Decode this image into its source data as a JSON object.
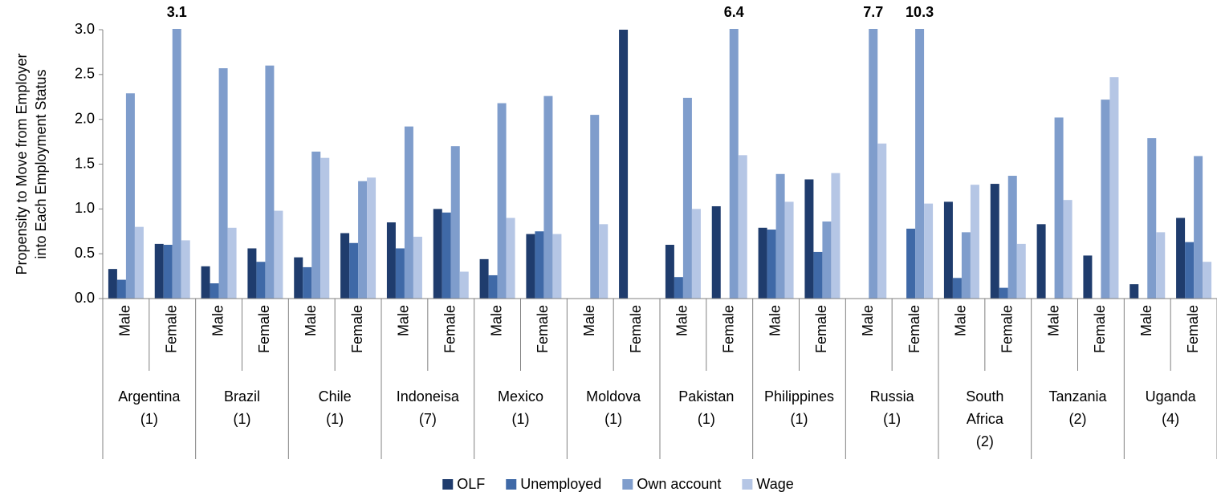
{
  "chart_data": {
    "type": "bar",
    "y_label": [
      "Propensity to Move from Employer",
      "into Each Employment Status"
    ],
    "categories": [
      "Male",
      "Female",
      "Male",
      "Female",
      "Male",
      "Female",
      "Male",
      "Female",
      "Male",
      "Female",
      "Male",
      "Female",
      "Male",
      "Female",
      "Male",
      "Female",
      "Male",
      "Female",
      "Male",
      "Female",
      "Male",
      "Female",
      "Male",
      "Female"
    ],
    "category_groups": [
      "Argentina (1)",
      "Brazil (1)",
      "Chile (1)",
      "Indoneisa (7)",
      "Mexico (1)",
      "Moldova (1)",
      "Pakistan (1)",
      "Philippines (1)",
      "Russia (1)",
      "South Africa (2)",
      "Tanzania (2)",
      "Uganda (4)"
    ],
    "series": [
      {
        "name": "OLF",
        "color": "#1f3c6d",
        "values": [
          0.33,
          0.61,
          0.36,
          0.56,
          0.46,
          0.73,
          0.85,
          1.0,
          0.44,
          0.72,
          0,
          3.0,
          0.6,
          1.03,
          0.79,
          1.33,
          0,
          0,
          1.08,
          1.28,
          0.83,
          0.48,
          0.16,
          0.9
        ]
      },
      {
        "name": "Unemployed",
        "color": "#3f69a7",
        "values": [
          0.21,
          0.6,
          0.17,
          0.41,
          0.35,
          0.62,
          0.56,
          0.96,
          0.26,
          0.75,
          0,
          0,
          0.24,
          0,
          0.77,
          0.52,
          0,
          0.78,
          0.23,
          0.12,
          0,
          0,
          0,
          0.63
        ]
      },
      {
        "name": "Own account",
        "color": "#7f9dcc",
        "values": [
          2.29,
          3.1,
          2.57,
          2.6,
          1.64,
          1.31,
          1.92,
          1.7,
          2.18,
          2.26,
          2.05,
          0,
          2.24,
          6.4,
          1.39,
          0.86,
          7.7,
          10.3,
          0.74,
          1.37,
          2.02,
          2.22,
          1.79,
          1.59
        ],
        "value_labels": [
          null,
          "3.1",
          null,
          null,
          null,
          null,
          null,
          null,
          null,
          null,
          null,
          null,
          null,
          "6.4",
          null,
          null,
          "7.7",
          "10.3",
          null,
          null,
          null,
          null,
          null,
          null
        ]
      },
      {
        "name": "Wage",
        "color": "#b5c6e5",
        "values": [
          0.8,
          0.65,
          0.79,
          0.98,
          1.57,
          1.35,
          0.69,
          0.3,
          0.9,
          0.72,
          0.83,
          0,
          1.0,
          1.6,
          1.08,
          1.4,
          1.73,
          1.06,
          1.27,
          0.61,
          1.1,
          2.47,
          0.74,
          0.41
        ]
      }
    ],
    "ylim": [
      0,
      3.0
    ],
    "yticks": [
      {
        "value": 0,
        "label": "0.0"
      },
      {
        "value": 0.5,
        "label": "0.5"
      },
      {
        "value": 1,
        "label": "1.0"
      },
      {
        "value": 1.5,
        "label": "1.5"
      },
      {
        "value": 2,
        "label": "2.0"
      },
      {
        "value": 2.5,
        "label": "2.5"
      },
      {
        "value": 3,
        "label": "3.0"
      }
    ],
    "grid": false,
    "legend": "bottom"
  }
}
